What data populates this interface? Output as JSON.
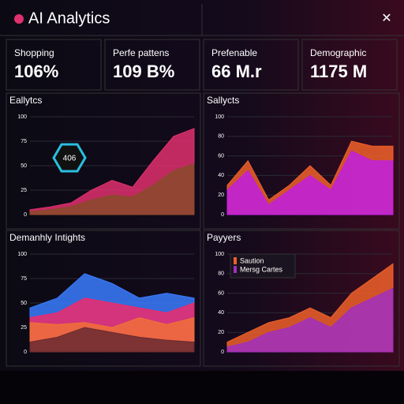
{
  "header": {
    "title": "AI Analytics"
  },
  "kpis": [
    {
      "label": "Shopping",
      "value": "106%"
    },
    {
      "label": "Perfe pattens",
      "value": "109 B%"
    },
    {
      "label": "Prefenable",
      "value": "66 M.r"
    },
    {
      "label": "Demographic",
      "value": "1175 M"
    }
  ],
  "chart_data": [
    {
      "type": "area",
      "title": "Eallytcs",
      "annotation": "406",
      "ylim": [
        0,
        100
      ],
      "yticks": [
        0,
        25,
        50,
        75,
        100
      ],
      "grid": true,
      "series": [
        {
          "color": "#e0306e",
          "values": [
            5,
            8,
            12,
            25,
            35,
            28,
            55,
            80,
            88
          ]
        },
        {
          "color": "#8a4a2a",
          "values": [
            3,
            5,
            8,
            15,
            20,
            18,
            30,
            45,
            52
          ]
        }
      ]
    },
    {
      "type": "area",
      "title": "Sallycts",
      "ylim": [
        0,
        100
      ],
      "yticks": [
        0,
        20,
        40,
        60,
        80,
        100
      ],
      "grid": true,
      "series": [
        {
          "color": "#f0602a",
          "values": [
            30,
            55,
            15,
            30,
            50,
            30,
            75,
            70,
            70
          ]
        },
        {
          "color": "#c020e0",
          "values": [
            25,
            45,
            10,
            25,
            40,
            25,
            65,
            55,
            55
          ]
        }
      ]
    },
    {
      "type": "area",
      "title": "Demanhly Intights",
      "ylim": [
        0,
        100
      ],
      "yticks": [
        0,
        25,
        50,
        75,
        100
      ],
      "grid": true,
      "series": [
        {
          "color": "#3a7cff",
          "values": [
            45,
            55,
            80,
            70,
            55,
            60,
            55
          ]
        },
        {
          "color": "#f02a6a",
          "values": [
            35,
            40,
            55,
            50,
            45,
            40,
            50
          ]
        },
        {
          "color": "#f0703a",
          "values": [
            30,
            28,
            30,
            25,
            35,
            28,
            35
          ]
        },
        {
          "color": "#6a2a30",
          "values": [
            10,
            15,
            25,
            20,
            15,
            12,
            10
          ]
        }
      ]
    },
    {
      "type": "area",
      "title": "Payyers",
      "ylim": [
        0,
        100
      ],
      "yticks": [
        0,
        20,
        40,
        60,
        80,
        100
      ],
      "grid": true,
      "series": [
        {
          "name": "Saution",
          "color": "#f0602a",
          "values": [
            10,
            20,
            30,
            35,
            45,
            35,
            60,
            75,
            90
          ]
        },
        {
          "name": "Mersg Cartes",
          "color": "#a030c0",
          "values": [
            5,
            10,
            20,
            25,
            35,
            25,
            45,
            55,
            65
          ]
        }
      ]
    }
  ]
}
